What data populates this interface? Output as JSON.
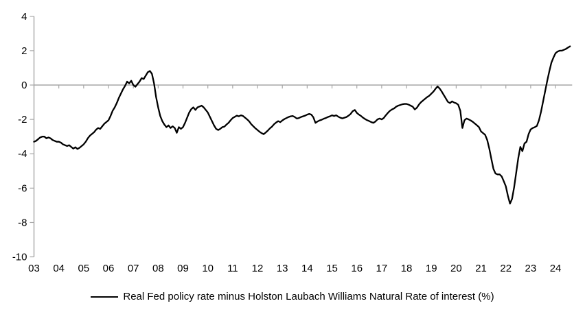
{
  "legend": {
    "label": "Real Fed policy rate minus Holston Laubach Williams Natural Rate of interest (%)"
  },
  "chart_data": {
    "type": "line",
    "title": "",
    "xlabel": "",
    "ylabel": "",
    "grid": "zero-line-only",
    "legend_position": "bottom-center",
    "ylim": [
      -10,
      4
    ],
    "xlim_years": [
      2003,
      2024.67
    ],
    "y_ticks": [
      4,
      2,
      0,
      -2,
      -4,
      -6,
      -8,
      -10
    ],
    "x_ticks": [
      "03",
      "04",
      "05",
      "06",
      "07",
      "08",
      "09",
      "10",
      "11",
      "12",
      "13",
      "14",
      "15",
      "16",
      "17",
      "18",
      "19",
      "20",
      "21",
      "22",
      "23",
      "24"
    ],
    "colors": {
      "line": "#000000",
      "axis": "#a6a6a6",
      "labels": "#000000",
      "background": "#ffffff"
    },
    "series": [
      {
        "name": "Real Fed policy rate minus Holston Laubach Williams Natural Rate of interest (%)",
        "frequency": "monthly",
        "start_year": 2003,
        "start_month": 1,
        "values": [
          -3.3,
          -3.25,
          -3.15,
          -3.05,
          -3.0,
          -3.0,
          -3.1,
          -3.05,
          -3.1,
          -3.2,
          -3.25,
          -3.3,
          -3.3,
          -3.35,
          -3.45,
          -3.5,
          -3.55,
          -3.5,
          -3.6,
          -3.7,
          -3.62,
          -3.72,
          -3.65,
          -3.55,
          -3.45,
          -3.3,
          -3.1,
          -2.95,
          -2.85,
          -2.75,
          -2.6,
          -2.5,
          -2.55,
          -2.4,
          -2.25,
          -2.15,
          -2.05,
          -1.8,
          -1.5,
          -1.3,
          -1.05,
          -0.75,
          -0.5,
          -0.25,
          -0.05,
          0.2,
          0.1,
          0.25,
          0.0,
          -0.1,
          0.05,
          0.2,
          0.4,
          0.35,
          0.55,
          0.75,
          0.82,
          0.65,
          0.1,
          -0.7,
          -1.3,
          -1.8,
          -2.1,
          -2.3,
          -2.45,
          -2.35,
          -2.5,
          -2.4,
          -2.5,
          -2.78,
          -2.45,
          -2.55,
          -2.45,
          -2.2,
          -1.9,
          -1.6,
          -1.4,
          -1.3,
          -1.45,
          -1.3,
          -1.25,
          -1.2,
          -1.3,
          -1.45,
          -1.6,
          -1.85,
          -2.1,
          -2.35,
          -2.55,
          -2.62,
          -2.55,
          -2.45,
          -2.42,
          -2.3,
          -2.2,
          -2.05,
          -1.92,
          -1.85,
          -1.78,
          -1.82,
          -1.76,
          -1.8,
          -1.9,
          -2.0,
          -2.12,
          -2.28,
          -2.4,
          -2.52,
          -2.62,
          -2.72,
          -2.8,
          -2.86,
          -2.76,
          -2.65,
          -2.52,
          -2.42,
          -2.28,
          -2.18,
          -2.1,
          -2.16,
          -2.06,
          -1.98,
          -1.92,
          -1.86,
          -1.82,
          -1.8,
          -1.86,
          -1.95,
          -1.92,
          -1.86,
          -1.82,
          -1.78,
          -1.72,
          -1.68,
          -1.72,
          -1.88,
          -2.2,
          -2.12,
          -2.06,
          -2.02,
          -1.96,
          -1.92,
          -1.86,
          -1.82,
          -1.76,
          -1.8,
          -1.76,
          -1.84,
          -1.9,
          -1.94,
          -1.9,
          -1.86,
          -1.78,
          -1.68,
          -1.52,
          -1.45,
          -1.62,
          -1.72,
          -1.8,
          -1.9,
          -1.98,
          -2.05,
          -2.1,
          -2.16,
          -2.2,
          -2.12,
          -2.0,
          -1.95,
          -2.0,
          -1.92,
          -1.76,
          -1.62,
          -1.5,
          -1.42,
          -1.36,
          -1.26,
          -1.2,
          -1.16,
          -1.12,
          -1.1,
          -1.1,
          -1.14,
          -1.2,
          -1.26,
          -1.42,
          -1.32,
          -1.14,
          -1.0,
          -0.9,
          -0.8,
          -0.7,
          -0.62,
          -0.5,
          -0.38,
          -0.22,
          -0.08,
          -0.2,
          -0.38,
          -0.58,
          -0.78,
          -0.98,
          -1.05,
          -0.95,
          -1.02,
          -1.06,
          -1.15,
          -1.5,
          -2.5,
          -2.05,
          -1.95,
          -2.0,
          -2.06,
          -2.14,
          -2.24,
          -2.34,
          -2.45,
          -2.7,
          -2.8,
          -2.9,
          -3.2,
          -3.7,
          -4.3,
          -4.88,
          -5.15,
          -5.2,
          -5.2,
          -5.32,
          -5.6,
          -5.9,
          -6.45,
          -6.9,
          -6.62,
          -5.95,
          -5.1,
          -4.25,
          -3.6,
          -3.85,
          -3.4,
          -3.3,
          -2.85,
          -2.58,
          -2.5,
          -2.45,
          -2.38,
          -2.05,
          -1.55,
          -0.95,
          -0.35,
          0.25,
          0.8,
          1.3,
          1.6,
          1.85,
          1.95,
          2.0,
          2.0,
          2.05,
          2.1,
          2.18,
          2.25
        ]
      }
    ]
  }
}
